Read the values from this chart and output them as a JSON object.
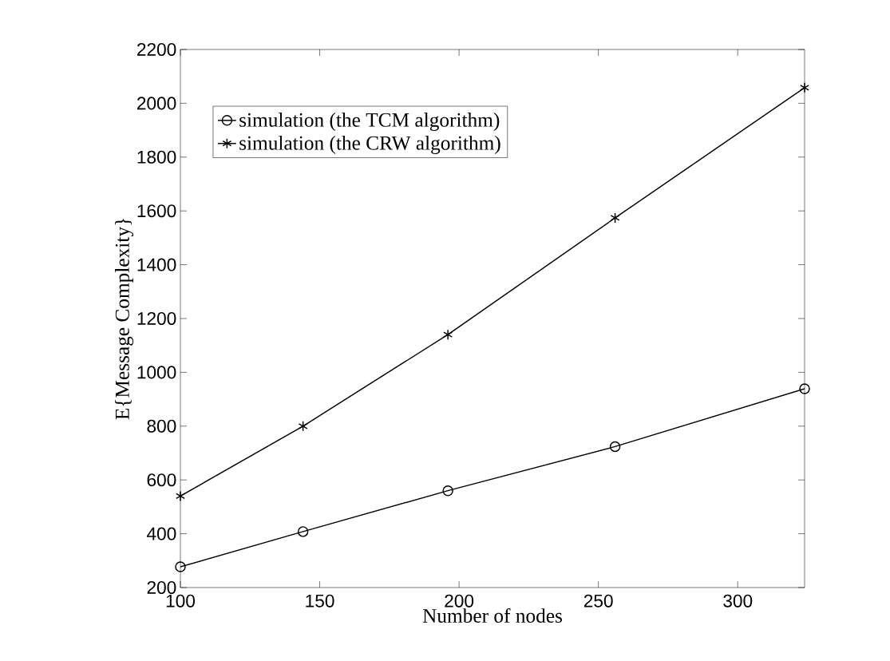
{
  "chart_data": {
    "type": "line",
    "xlabel": "Number of nodes",
    "ylabel": "E{Message Complexity}",
    "x": [
      100,
      144,
      196,
      256,
      324
    ],
    "series": [
      {
        "name": "simulation (the TCM algorithm)",
        "color": "#000000",
        "marker": "circle",
        "values": [
          277,
          408,
          560,
          724,
          939
        ]
      },
      {
        "name": "simulation (the CRW algorithm)",
        "color": "#000000",
        "marker": "cross",
        "values": [
          540,
          800,
          1140,
          1574,
          2058
        ]
      }
    ],
    "xlim": [
      100,
      324
    ],
    "ylim": [
      200,
      2200
    ],
    "xticks": [
      100,
      150,
      200,
      250,
      300
    ],
    "yticks": [
      200,
      400,
      600,
      800,
      1000,
      1200,
      1400,
      1600,
      1800,
      2000,
      2200
    ],
    "grid": false,
    "legend": "top left",
    "line_style": "solid"
  }
}
